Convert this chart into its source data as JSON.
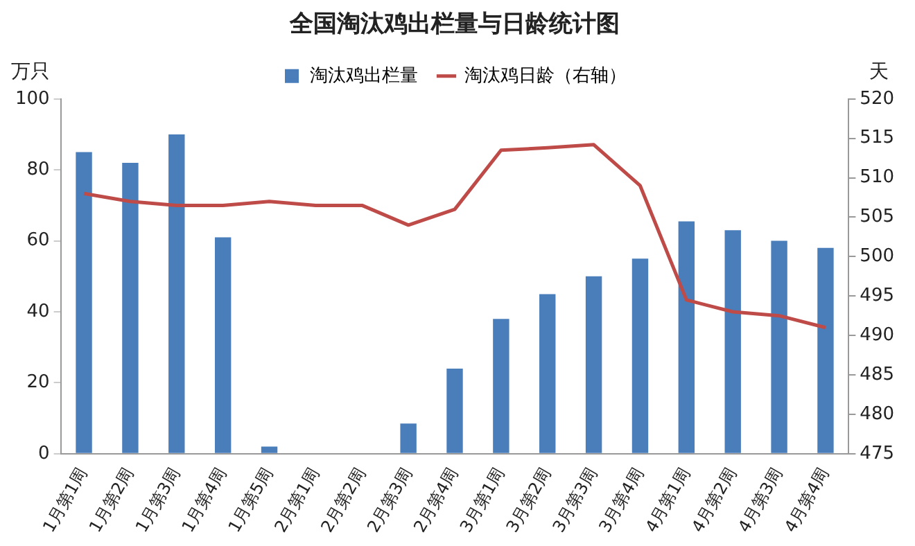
{
  "chart_data": {
    "type": "bar",
    "title": "全国淘汰鸡出栏量与日龄统计图",
    "ylabel": "万只",
    "y2label": "天",
    "categories": [
      "1月第1周",
      "1月第2周",
      "1月第3周",
      "1月第4周",
      "1月第5周",
      "2月第1周",
      "2月第2周",
      "2月第3周",
      "2月第4周",
      "3月第1周",
      "3月第2周",
      "3月第3周",
      "3月第4周",
      "4月第1周",
      "4月第2周",
      "4月第3周",
      "4月第4周"
    ],
    "series": [
      {
        "name": "淘汰鸡出栏量",
        "color": "#4a7ebb",
        "values": [
          85,
          82,
          90,
          61,
          2,
          0,
          0,
          8.5,
          24,
          38,
          45,
          50,
          55,
          65.5,
          63,
          60,
          58
        ]
      },
      {
        "name": "淘汰鸡日龄（右轴）",
        "type": "line",
        "axis": "y2",
        "color": "#be4b48",
        "values": [
          508,
          507,
          506.5,
          506.5,
          507,
          506.5,
          506.5,
          504,
          506,
          513.5,
          513.8,
          514.2,
          509,
          494.5,
          493,
          492.5,
          491
        ]
      }
    ],
    "ylim": [
      0,
      100
    ],
    "yticks": [
      0,
      20,
      40,
      60,
      80,
      100
    ],
    "y2lim": [
      475,
      520
    ],
    "y2ticks": [
      475,
      480,
      485,
      490,
      495,
      500,
      505,
      510,
      515,
      520
    ],
    "legend": "top",
    "grid": false,
    "marker": "none"
  }
}
